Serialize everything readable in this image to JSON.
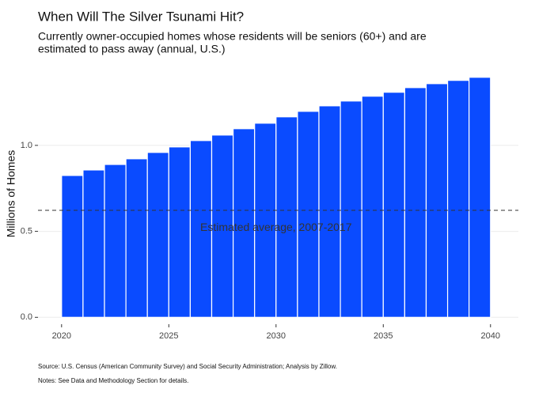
{
  "chart_data": {
    "type": "histogram",
    "title": "When Will The Silver Tsunami Hit?",
    "subtitle": [
      "Currently owner-occupied homes whose residents will be seniors (60+) and are",
      "estimated to pass away (annual, U.S.)"
    ],
    "y_label": "Millions of Homes",
    "bins": [
      2020,
      2021,
      2022,
      2023,
      2024,
      2025,
      2026,
      2027,
      2028,
      2029,
      2030,
      2031,
      2032,
      2033,
      2034,
      2035,
      2036,
      2037,
      2038,
      2039,
      2040
    ],
    "values": [
      0.825,
      0.857,
      0.889,
      0.922,
      0.959,
      0.991,
      1.028,
      1.06,
      1.097,
      1.129,
      1.166,
      1.198,
      1.23,
      1.258,
      1.286,
      1.309,
      1.336,
      1.359,
      1.378,
      1.396
    ],
    "color": "#0a4bff",
    "reference_line": {
      "value": 0.622,
      "label": "Estimated average, 2007-2017"
    },
    "xlim": [
      2018.9,
      2041.3
    ],
    "xticks": [
      2020,
      2025,
      2030,
      2035,
      2040
    ],
    "ylim": [
      -0.04,
      1.45
    ],
    "yticks": [
      {
        "value": 0,
        "label": "0.0"
      },
      {
        "value": 0.5,
        "label": "0.5"
      },
      {
        "value": 1,
        "label": "1.0"
      }
    ],
    "grid": true,
    "source": "Source: U.S. Census (American Community Survey) and Social Security Administration; Analysis by Zillow.",
    "notes": "Notes: See Data and Methodology Section for details."
  }
}
